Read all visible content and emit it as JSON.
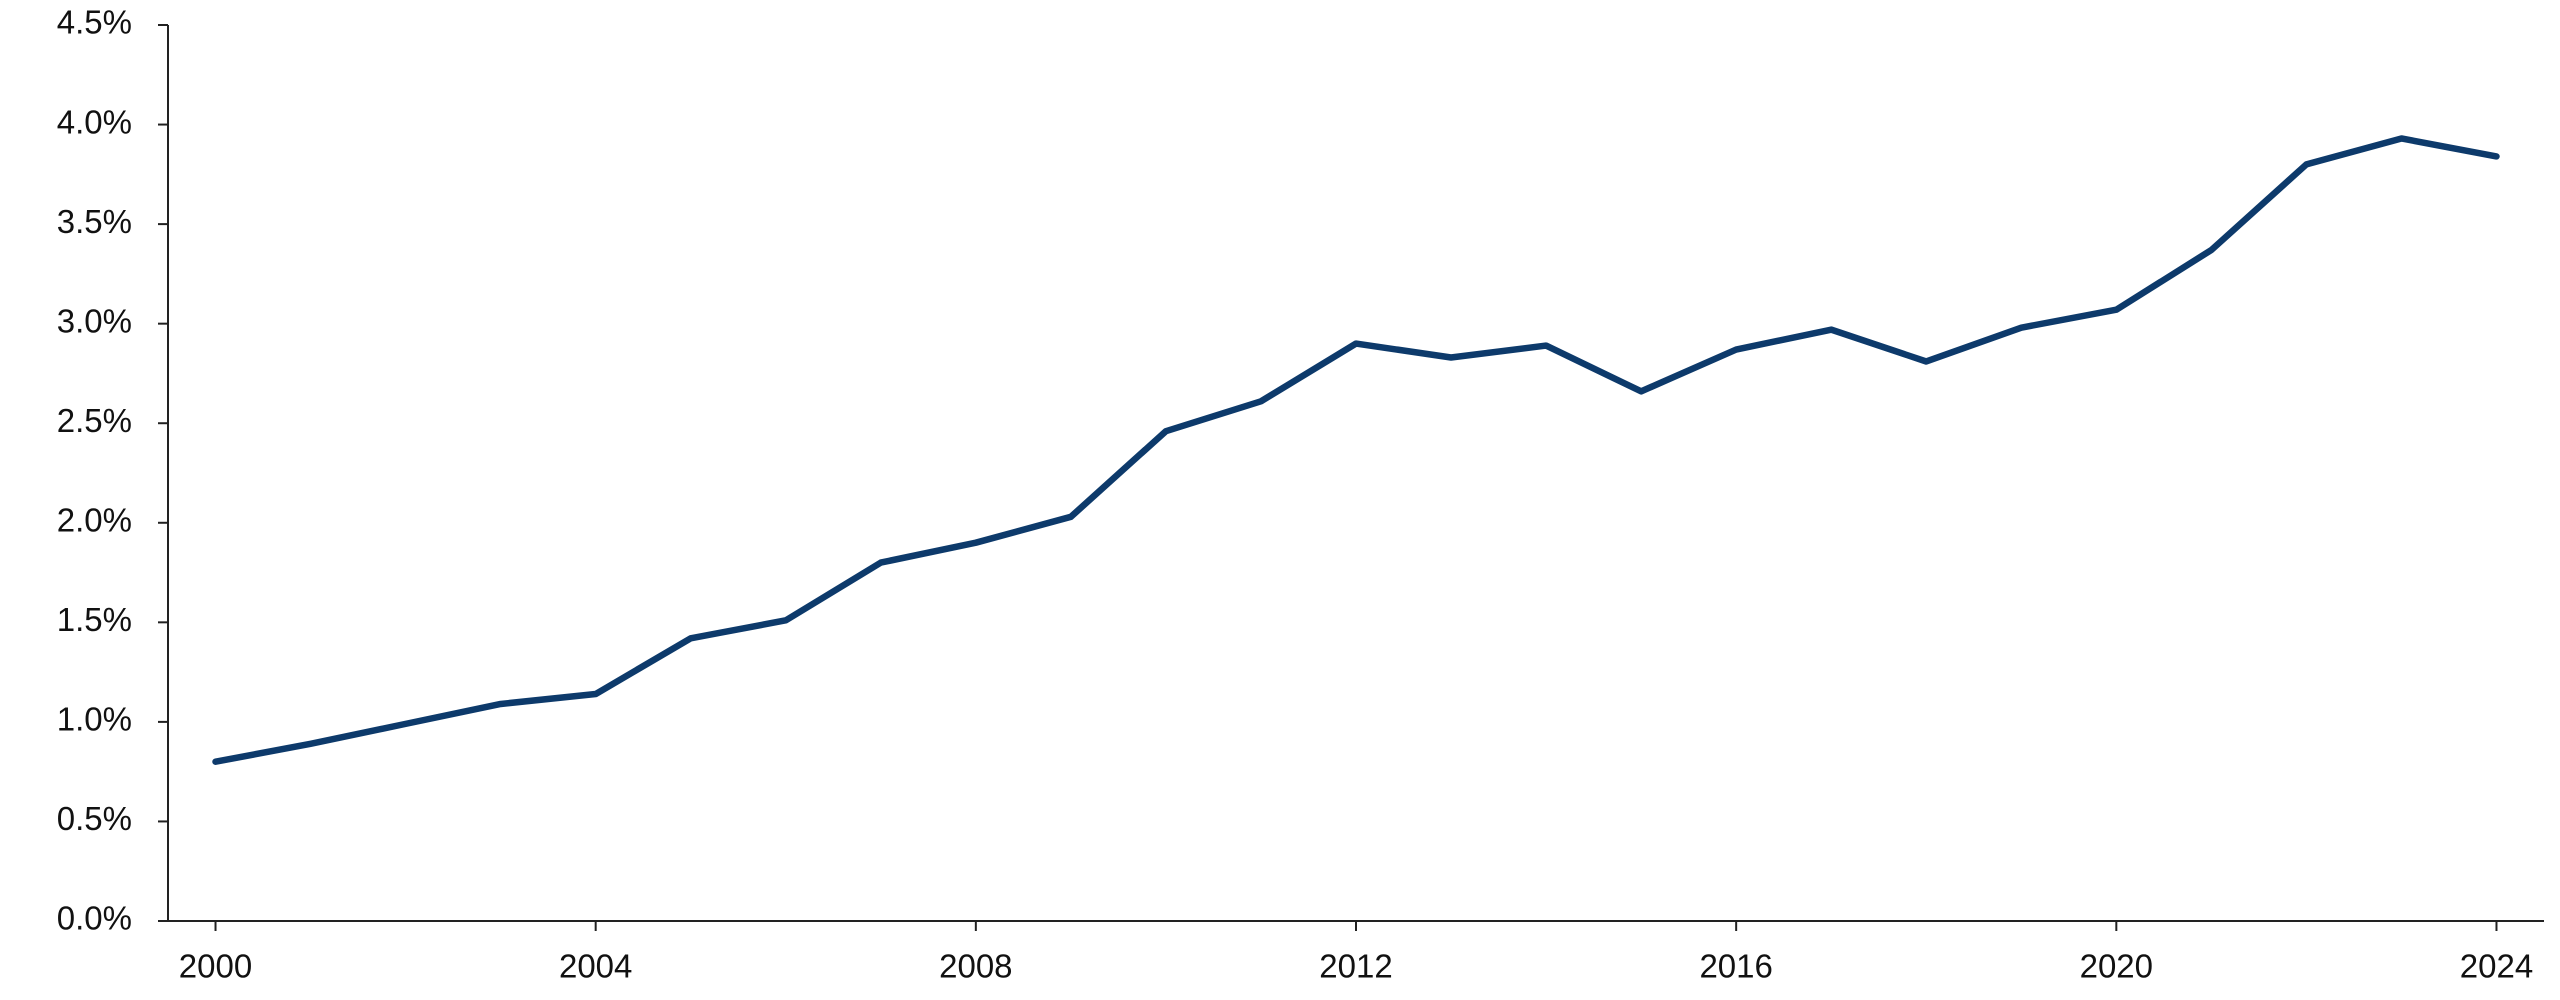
{
  "chart_data": {
    "type": "line",
    "x": [
      2000,
      2001,
      2002,
      2003,
      2004,
      2005,
      2006,
      2007,
      2008,
      2009,
      2010,
      2011,
      2012,
      2013,
      2014,
      2015,
      2016,
      2017,
      2018,
      2019,
      2020,
      2021,
      2022,
      2023,
      2024
    ],
    "series": [
      {
        "color": "#0d3a6b",
        "values": [
          0.8,
          0.89,
          0.99,
          1.09,
          1.14,
          1.42,
          1.51,
          1.8,
          1.9,
          2.03,
          2.46,
          2.61,
          2.9,
          2.83,
          2.89,
          2.66,
          2.87,
          2.97,
          2.81,
          2.98,
          3.07,
          3.37,
          3.8,
          3.93,
          3.84
        ]
      }
    ],
    "xlim": [
      1999.5,
      2024.5
    ],
    "xticks": [
      2000,
      2004,
      2008,
      2012,
      2016,
      2020,
      2024
    ],
    "ylim": [
      0,
      4.5
    ],
    "yticks": [
      {
        "value": 0,
        "label": "0.0%"
      },
      {
        "value": 0.5,
        "label": "0.5%"
      },
      {
        "value": 1,
        "label": "1.0%"
      },
      {
        "value": 1.5,
        "label": "1.5%"
      },
      {
        "value": 2,
        "label": "2.0%"
      },
      {
        "value": 2.5,
        "label": "2.5%"
      },
      {
        "value": 3,
        "label": "3.0%"
      },
      {
        "value": 3.5,
        "label": "3.5%"
      },
      {
        "value": 4,
        "label": "4.0%"
      },
      {
        "value": 4.5,
        "label": "4.5%"
      }
    ]
  }
}
